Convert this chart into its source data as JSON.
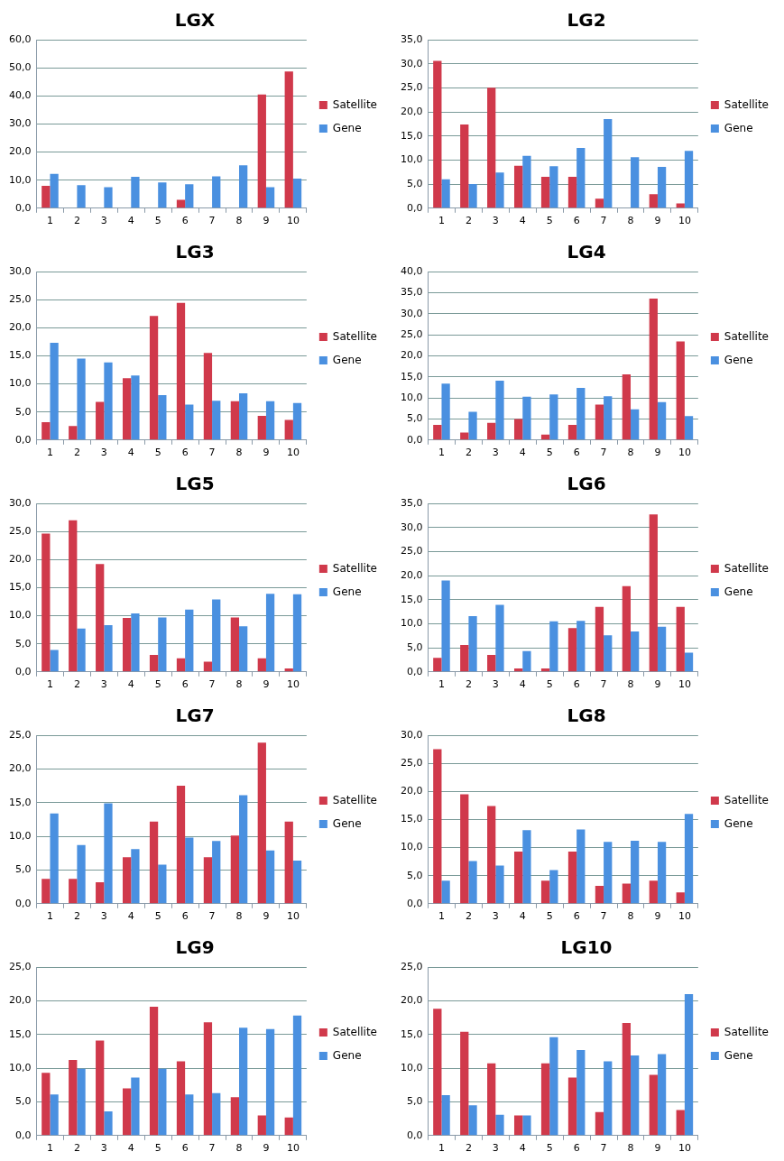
{
  "chart_data": [
    {
      "type": "bar",
      "title": "LGX",
      "categories": [
        "1",
        "2",
        "3",
        "4",
        "5",
        "6",
        "7",
        "8",
        "9",
        "10"
      ],
      "series": [
        {
          "name": "Satellite",
          "color": "#d0394b",
          "values": [
            8,
            0,
            0,
            0,
            0,
            3,
            0,
            0,
            40.5,
            48.7
          ]
        },
        {
          "name": "Gene",
          "color": "#4a90e0",
          "values": [
            12.2,
            8.2,
            7.5,
            11.2,
            9.2,
            8.5,
            11.3,
            15.3,
            7.5,
            10.5
          ]
        }
      ],
      "ylim": [
        0,
        60
      ],
      "yticks": [
        {
          "value": 0,
          "label": "0,0"
        },
        {
          "value": 10,
          "label": "10,0"
        },
        {
          "value": 20,
          "label": "20,0"
        },
        {
          "value": 30,
          "label": "30,0"
        },
        {
          "value": 40,
          "label": "40,0"
        },
        {
          "value": 50,
          "label": "50,0"
        },
        {
          "value": 60,
          "label": "60,0"
        }
      ],
      "grid": "y",
      "legend": "right"
    },
    {
      "type": "bar",
      "title": "LG2",
      "categories": [
        "1",
        "2",
        "3",
        "4",
        "5",
        "6",
        "7",
        "8",
        "9",
        "10"
      ],
      "series": [
        {
          "name": "Satellite",
          "color": "#d0394b",
          "values": [
            30.6,
            17.4,
            25,
            8.8,
            6.5,
            6.5,
            2,
            0,
            2.9,
            1
          ]
        },
        {
          "name": "Gene",
          "color": "#4a90e0",
          "values": [
            6,
            5,
            7.4,
            10.9,
            8.7,
            12.5,
            18.5,
            10.6,
            8.6,
            11.9
          ]
        }
      ],
      "ylim": [
        0,
        35
      ],
      "yticks": [
        {
          "value": 0,
          "label": "0,0"
        },
        {
          "value": 5,
          "label": "5,0"
        },
        {
          "value": 10,
          "label": "10,0"
        },
        {
          "value": 15,
          "label": "15,0"
        },
        {
          "value": 20,
          "label": "20,0"
        },
        {
          "value": 25,
          "label": "25,0"
        },
        {
          "value": 30,
          "label": "30,0"
        },
        {
          "value": 35,
          "label": "35,0"
        }
      ],
      "grid": "y",
      "legend": "right"
    },
    {
      "type": "bar",
      "title": "LG3",
      "categories": [
        "1",
        "2",
        "3",
        "4",
        "5",
        "6",
        "7",
        "8",
        "9",
        "10"
      ],
      "series": [
        {
          "name": "Satellite",
          "color": "#d0394b",
          "values": [
            3.2,
            2.5,
            6.8,
            11,
            22.1,
            24.4,
            15.5,
            6.9,
            4.3,
            3.6
          ]
        },
        {
          "name": "Gene",
          "color": "#4a90e0",
          "values": [
            17.3,
            14.5,
            13.8,
            11.5,
            8,
            6.3,
            7,
            8.3,
            6.9,
            6.6
          ]
        }
      ],
      "ylim": [
        0,
        30
      ],
      "yticks": [
        {
          "value": 0,
          "label": "0,0"
        },
        {
          "value": 5,
          "label": "5,0"
        },
        {
          "value": 10,
          "label": "10,0"
        },
        {
          "value": 15,
          "label": "15,0"
        },
        {
          "value": 20,
          "label": "20,0"
        },
        {
          "value": 25,
          "label": "25,0"
        },
        {
          "value": 30,
          "label": "30,0"
        }
      ],
      "grid": "y",
      "legend": "right"
    },
    {
      "type": "bar",
      "title": "LG4",
      "categories": [
        "1",
        "2",
        "3",
        "4",
        "5",
        "6",
        "7",
        "8",
        "9",
        "10"
      ],
      "series": [
        {
          "name": "Satellite",
          "color": "#d0394b",
          "values": [
            3.6,
            1.8,
            4.1,
            5,
            1.3,
            3.6,
            8.4,
            15.6,
            33.6,
            23.4
          ]
        },
        {
          "name": "Gene",
          "color": "#4a90e0",
          "values": [
            13.4,
            6.7,
            14.1,
            10.3,
            10.8,
            12.4,
            10.4,
            7.3,
            9,
            5.7
          ]
        }
      ],
      "ylim": [
        0,
        40
      ],
      "yticks": [
        {
          "value": 0,
          "label": "0,0"
        },
        {
          "value": 5,
          "label": "5,0"
        },
        {
          "value": 10,
          "label": "10,0"
        },
        {
          "value": 15,
          "label": "15,0"
        },
        {
          "value": 20,
          "label": "20,0"
        },
        {
          "value": 25,
          "label": "25,0"
        },
        {
          "value": 30,
          "label": "30,0"
        },
        {
          "value": 35,
          "label": "35,0"
        },
        {
          "value": 40,
          "label": "40,0"
        }
      ],
      "grid": "y",
      "legend": "right"
    },
    {
      "type": "bar",
      "title": "LG5",
      "categories": [
        "1",
        "2",
        "3",
        "4",
        "5",
        "6",
        "7",
        "8",
        "9",
        "10"
      ],
      "series": [
        {
          "name": "Satellite",
          "color": "#d0394b",
          "values": [
            24.6,
            27,
            19.2,
            9.6,
            3,
            2.4,
            1.8,
            9.7,
            2.4,
            0.6
          ]
        },
        {
          "name": "Gene",
          "color": "#4a90e0",
          "values": [
            3.9,
            7.7,
            8.3,
            10.4,
            9.7,
            11.1,
            12.9,
            8.1,
            13.9,
            13.8
          ]
        }
      ],
      "ylim": [
        0,
        30
      ],
      "yticks": [
        {
          "value": 0,
          "label": "0,0"
        },
        {
          "value": 5,
          "label": "5,0"
        },
        {
          "value": 10,
          "label": "10,0"
        },
        {
          "value": 15,
          "label": "15,0"
        },
        {
          "value": 20,
          "label": "20,0"
        },
        {
          "value": 25,
          "label": "25,0"
        },
        {
          "value": 30,
          "label": "30,0"
        }
      ],
      "grid": "y",
      "legend": "right"
    },
    {
      "type": "bar",
      "title": "LG6",
      "categories": [
        "1",
        "2",
        "3",
        "4",
        "5",
        "6",
        "7",
        "8",
        "9",
        "10"
      ],
      "series": [
        {
          "name": "Satellite",
          "color": "#d0394b",
          "values": [
            2.9,
            5.6,
            3.5,
            0.7,
            0.7,
            9.1,
            13.5,
            17.8,
            32.7,
            13.5
          ]
        },
        {
          "name": "Gene",
          "color": "#4a90e0",
          "values": [
            19,
            11.6,
            13.9,
            4.3,
            10.5,
            10.6,
            7.6,
            8.4,
            9.4,
            4
          ]
        }
      ],
      "ylim": [
        0,
        35
      ],
      "yticks": [
        {
          "value": 0,
          "label": "0,0"
        },
        {
          "value": 5,
          "label": "5,0"
        },
        {
          "value": 10,
          "label": "10,0"
        },
        {
          "value": 15,
          "label": "15,0"
        },
        {
          "value": 20,
          "label": "20,0"
        },
        {
          "value": 25,
          "label": "25,0"
        },
        {
          "value": 30,
          "label": "30,0"
        },
        {
          "value": 35,
          "label": "35,0"
        }
      ],
      "grid": "y",
      "legend": "right"
    },
    {
      "type": "bar",
      "title": "LG7",
      "categories": [
        "1",
        "2",
        "3",
        "4",
        "5",
        "6",
        "7",
        "8",
        "9",
        "10"
      ],
      "series": [
        {
          "name": "Satellite",
          "color": "#d0394b",
          "values": [
            3.7,
            3.7,
            3.2,
            6.9,
            12.2,
            17.5,
            6.9,
            10.1,
            23.9,
            12.2
          ]
        },
        {
          "name": "Gene",
          "color": "#4a90e0",
          "values": [
            13.4,
            8.7,
            14.9,
            8.1,
            5.8,
            9.8,
            9.3,
            16.1,
            7.9,
            6.4
          ]
        }
      ],
      "ylim": [
        0,
        25
      ],
      "yticks": [
        {
          "value": 0,
          "label": "0,0"
        },
        {
          "value": 5,
          "label": "5,0"
        },
        {
          "value": 10,
          "label": "10,0"
        },
        {
          "value": 15,
          "label": "15,0"
        },
        {
          "value": 20,
          "label": "20,0"
        },
        {
          "value": 25,
          "label": "25,0"
        }
      ],
      "grid": "y",
      "legend": "right"
    },
    {
      "type": "bar",
      "title": "LG8",
      "categories": [
        "1",
        "2",
        "3",
        "4",
        "5",
        "6",
        "7",
        "8",
        "9",
        "10"
      ],
      "series": [
        {
          "name": "Satellite",
          "color": "#d0394b",
          "values": [
            27.5,
            19.5,
            17.4,
            9.3,
            4.1,
            9.3,
            3.2,
            3.6,
            4.1,
            2
          ]
        },
        {
          "name": "Gene",
          "color": "#4a90e0",
          "values": [
            4.1,
            7.6,
            6.8,
            13.1,
            6,
            13.2,
            11,
            11.2,
            11,
            16
          ]
        }
      ],
      "ylim": [
        0,
        30
      ],
      "yticks": [
        {
          "value": 0,
          "label": "0,0"
        },
        {
          "value": 5,
          "label": "5,0"
        },
        {
          "value": 10,
          "label": "10,0"
        },
        {
          "value": 15,
          "label": "15,0"
        },
        {
          "value": 20,
          "label": "20,0"
        },
        {
          "value": 25,
          "label": "25,0"
        },
        {
          "value": 30,
          "label": "30,0"
        }
      ],
      "grid": "y",
      "legend": "right"
    },
    {
      "type": "bar",
      "title": "LG9",
      "categories": [
        "1",
        "2",
        "3",
        "4",
        "5",
        "6",
        "7",
        "8",
        "9",
        "10"
      ],
      "series": [
        {
          "name": "Satellite",
          "color": "#d0394b",
          "values": [
            9.3,
            11.2,
            14.1,
            7,
            19.1,
            11,
            16.8,
            5.7,
            3,
            2.7
          ]
        },
        {
          "name": "Gene",
          "color": "#4a90e0",
          "values": [
            6.1,
            9.9,
            3.6,
            8.6,
            9.9,
            6.1,
            6.3,
            16,
            15.8,
            17.8
          ]
        }
      ],
      "ylim": [
        0,
        25
      ],
      "yticks": [
        {
          "value": 0,
          "label": "0,0"
        },
        {
          "value": 5,
          "label": "5,0"
        },
        {
          "value": 10,
          "label": "10,0"
        },
        {
          "value": 15,
          "label": "15,0"
        },
        {
          "value": 20,
          "label": "20,0"
        },
        {
          "value": 25,
          "label": "25,0"
        }
      ],
      "grid": "y",
      "legend": "right"
    },
    {
      "type": "bar",
      "title": "LG10",
      "categories": [
        "1",
        "2",
        "3",
        "4",
        "5",
        "6",
        "7",
        "8",
        "9",
        "10"
      ],
      "series": [
        {
          "name": "Satellite",
          "color": "#d0394b",
          "values": [
            18.8,
            15.4,
            10.7,
            3,
            10.7,
            8.6,
            3.5,
            16.7,
            9,
            3.8
          ]
        },
        {
          "name": "Gene",
          "color": "#4a90e0",
          "values": [
            6,
            4.5,
            3.1,
            3,
            14.6,
            12.7,
            11,
            11.9,
            12.1,
            21
          ]
        }
      ],
      "ylim": [
        0,
        25
      ],
      "yticks": [
        {
          "value": 0,
          "label": "0,0"
        },
        {
          "value": 5,
          "label": "5,0"
        },
        {
          "value": 10,
          "label": "10,0"
        },
        {
          "value": 15,
          "label": "15,0"
        },
        {
          "value": 20,
          "label": "20,0"
        },
        {
          "value": 25,
          "label": "25,0"
        }
      ],
      "grid": "y",
      "legend": "right"
    }
  ]
}
